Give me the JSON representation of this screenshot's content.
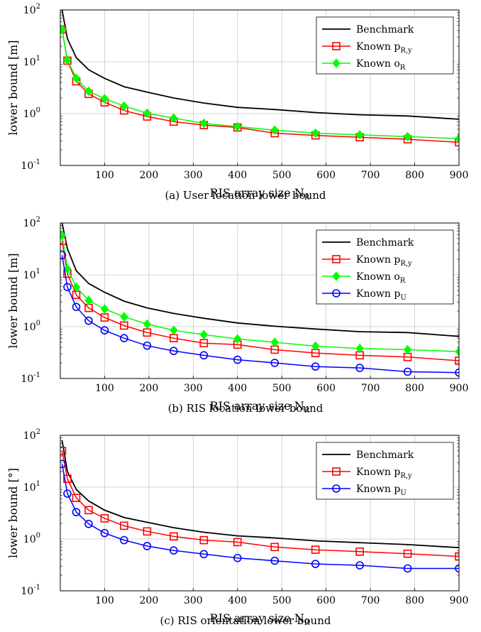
{
  "chart_data": [
    {
      "type": "line",
      "caption": "(a) User location lower bound",
      "xlabel": "RIS array size N_R",
      "ylabel": "lower bound [m]",
      "yscale": "log",
      "xlim": [
        0,
        900
      ],
      "ylim": [
        0.1,
        100
      ],
      "x_ticks": [
        "100",
        "200",
        "300",
        "400",
        "500",
        "600",
        "700",
        "800",
        "900"
      ],
      "y_ticks": [
        "10^-1",
        "10^0",
        "10^1",
        "10^2"
      ],
      "grid": true,
      "legend_position": "top-right",
      "series": [
        {
          "name": "Benchmark",
          "color": "#000000",
          "marker": "none",
          "x": [
            4,
            16,
            36,
            64,
            100,
            144,
            196,
            256,
            324,
            400,
            484,
            576,
            676,
            784,
            900
          ],
          "y": [
            100,
            28,
            12,
            7,
            4.8,
            3.3,
            2.6,
            2.0,
            1.6,
            1.32,
            1.2,
            1.05,
            0.95,
            0.9,
            0.78
          ]
        },
        {
          "name": "Known p_R,y",
          "color": "#ff0000",
          "marker": "square",
          "x": [
            4,
            16,
            36,
            64,
            100,
            144,
            196,
            256,
            324,
            400,
            484,
            576,
            676,
            784,
            900
          ],
          "y": [
            42,
            10.5,
            4.2,
            2.4,
            1.65,
            1.15,
            0.88,
            0.7,
            0.6,
            0.54,
            0.42,
            0.38,
            0.35,
            0.32,
            0.28
          ]
        },
        {
          "name": "Known o_R",
          "color": "#00ff00",
          "marker": "diamond",
          "x": [
            4,
            16,
            36,
            64,
            100,
            144,
            196,
            256,
            324,
            400,
            484,
            576,
            676,
            784,
            900
          ],
          "y": [
            42,
            10.8,
            4.8,
            2.7,
            1.95,
            1.4,
            1.02,
            0.82,
            0.65,
            0.56,
            0.48,
            0.42,
            0.39,
            0.36,
            0.33
          ]
        }
      ]
    },
    {
      "type": "line",
      "caption": "(b) RIS location lower bound",
      "xlabel": "RIS array size N_R",
      "ylabel": "lower bound [m]",
      "yscale": "log",
      "xlim": [
        0,
        900
      ],
      "ylim": [
        0.1,
        100
      ],
      "x_ticks": [
        "100",
        "200",
        "300",
        "400",
        "500",
        "600",
        "700",
        "800",
        "900"
      ],
      "y_ticks": [
        "10^-1",
        "10^0",
        "10^1",
        "10^2"
      ],
      "grid": true,
      "legend_position": "top-right",
      "series": [
        {
          "name": "Benchmark",
          "color": "#000000",
          "marker": "none",
          "x": [
            4,
            16,
            36,
            64,
            100,
            144,
            196,
            256,
            324,
            400,
            484,
            576,
            676,
            784,
            900
          ],
          "y": [
            100,
            32,
            12,
            6.8,
            4.6,
            3.1,
            2.3,
            1.8,
            1.45,
            1.18,
            1.02,
            0.9,
            0.8,
            0.77,
            0.65
          ]
        },
        {
          "name": "Known p_R,y",
          "color": "#ff0000",
          "marker": "square",
          "x": [
            4,
            16,
            36,
            64,
            100,
            144,
            196,
            256,
            324,
            400,
            484,
            576,
            676,
            784,
            900
          ],
          "y": [
            45,
            10.5,
            4.1,
            2.3,
            1.5,
            1.05,
            0.77,
            0.6,
            0.48,
            0.45,
            0.36,
            0.31,
            0.28,
            0.26,
            0.22
          ]
        },
        {
          "name": "Known o_R",
          "color": "#00ff00",
          "marker": "diamond",
          "x": [
            4,
            16,
            36,
            64,
            100,
            144,
            196,
            256,
            324,
            400,
            484,
            576,
            676,
            784,
            900
          ],
          "y": [
            58,
            13,
            5.8,
            3.2,
            2.2,
            1.55,
            1.12,
            0.85,
            0.7,
            0.58,
            0.5,
            0.42,
            0.38,
            0.36,
            0.33
          ]
        },
        {
          "name": "Known p_U",
          "color": "#0000ff",
          "marker": "circle",
          "x": [
            4,
            16,
            36,
            64,
            100,
            144,
            196,
            256,
            324,
            400,
            484,
            576,
            676,
            784,
            900
          ],
          "y": [
            24,
            5.8,
            2.4,
            1.3,
            0.85,
            0.6,
            0.43,
            0.34,
            0.28,
            0.23,
            0.2,
            0.17,
            0.16,
            0.135,
            0.13
          ]
        }
      ]
    },
    {
      "type": "line",
      "caption": "(c) RIS orientation lower bound",
      "xlabel": "RIS array size N_R",
      "ylabel": "lower bound [°]",
      "yscale": "log",
      "xlim": [
        0,
        900
      ],
      "ylim": [
        0.1,
        100
      ],
      "x_ticks": [
        "100",
        "200",
        "300",
        "400",
        "500",
        "600",
        "700",
        "800",
        "900"
      ],
      "y_ticks": [
        "10^-1",
        "10^0",
        "10^1",
        "10^2"
      ],
      "grid": true,
      "legend_position": "top-right",
      "series": [
        {
          "name": "Benchmark",
          "color": "#000000",
          "marker": "none",
          "x": [
            4,
            16,
            36,
            64,
            100,
            144,
            196,
            256,
            324,
            400,
            484,
            576,
            676,
            784,
            900
          ],
          "y": [
            80,
            20,
            9,
            5.4,
            3.6,
            2.6,
            2.1,
            1.65,
            1.35,
            1.15,
            1.05,
            0.92,
            0.85,
            0.78,
            0.68
          ]
        },
        {
          "name": "Known p_R,y",
          "color": "#ff0000",
          "marker": "square",
          "x": [
            4,
            16,
            36,
            64,
            100,
            144,
            196,
            256,
            324,
            400,
            484,
            576,
            676,
            784,
            900
          ],
          "y": [
            50,
            14.5,
            6.2,
            3.6,
            2.5,
            1.8,
            1.4,
            1.12,
            0.95,
            0.87,
            0.7,
            0.62,
            0.57,
            0.52,
            0.46
          ]
        },
        {
          "name": "Known p_U",
          "color": "#0000ff",
          "marker": "circle",
          "x": [
            4,
            16,
            36,
            64,
            100,
            144,
            196,
            256,
            324,
            400,
            484,
            576,
            676,
            784,
            900
          ],
          "y": [
            28,
            7.5,
            3.3,
            1.95,
            1.3,
            0.95,
            0.73,
            0.6,
            0.51,
            0.43,
            0.38,
            0.33,
            0.31,
            0.27,
            0.27
          ]
        }
      ]
    }
  ]
}
